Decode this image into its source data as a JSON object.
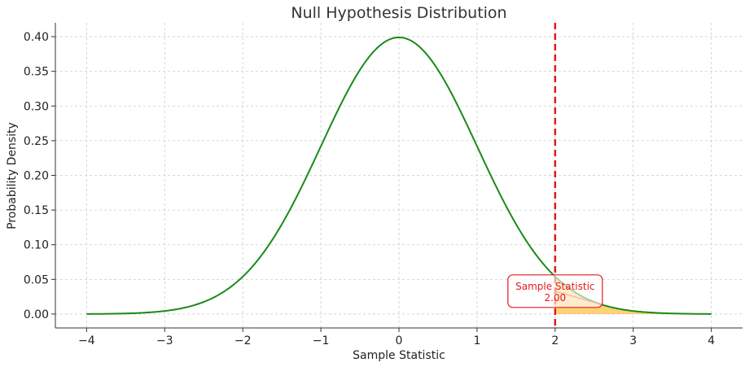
{
  "chart_data": {
    "type": "line",
    "title": "Null Hypothesis Distribution",
    "xlabel": "Sample Statistic",
    "ylabel": "Probability Density",
    "xlim": [
      -4.4,
      4.4
    ],
    "ylim": [
      -0.02,
      0.42
    ],
    "x_ticks": [
      -4,
      -3,
      -2,
      -1,
      0,
      1,
      2,
      3,
      4
    ],
    "x_tick_labels": [
      "−4",
      "−3",
      "−2",
      "−1",
      "0",
      "1",
      "2",
      "3",
      "4"
    ],
    "y_ticks": [
      0.0,
      0.05,
      0.1,
      0.15,
      0.2,
      0.25,
      0.3,
      0.35,
      0.4
    ],
    "y_tick_labels": [
      "0.00",
      "0.05",
      "0.10",
      "0.15",
      "0.20",
      "0.25",
      "0.30",
      "0.35",
      "0.40"
    ],
    "grid": true,
    "series": [
      {
        "color": "#1a8a1a",
        "x": [
          -4.0,
          -3.8,
          -3.6,
          -3.4,
          -3.2,
          -3.0,
          -2.8,
          -2.6,
          -2.4,
          -2.2,
          -2.0,
          -1.8,
          -1.6,
          -1.4,
          -1.2,
          -1.0,
          -0.8,
          -0.6,
          -0.4,
          -0.2,
          0.0,
          0.2,
          0.4,
          0.6,
          0.8,
          1.0,
          1.2,
          1.4,
          1.6,
          1.8,
          2.0,
          2.2,
          2.4,
          2.6,
          2.8,
          3.0,
          3.2,
          3.4,
          3.6,
          3.8,
          4.0
        ],
        "y": [
          0.0001,
          0.0003,
          0.0006,
          0.0012,
          0.0024,
          0.0044,
          0.0079,
          0.0136,
          0.0224,
          0.0355,
          0.054,
          0.079,
          0.1109,
          0.1497,
          0.1942,
          0.242,
          0.2897,
          0.3332,
          0.3683,
          0.391,
          0.3989,
          0.391,
          0.3683,
          0.3332,
          0.2897,
          0.242,
          0.1942,
          0.1497,
          0.1109,
          0.079,
          0.054,
          0.0355,
          0.0224,
          0.0136,
          0.0079,
          0.0044,
          0.0024,
          0.0012,
          0.0006,
          0.0003,
          0.0001
        ]
      }
    ],
    "shaded_region": {
      "from": 2.0,
      "to": 4.0,
      "color": "#ffc04d"
    },
    "vline": {
      "x": 2.0,
      "color": "#e31a1c",
      "style": "dashed"
    },
    "annotation": {
      "line1": "Sample Statistic",
      "line2": "2.00",
      "x": 2.0,
      "y": 0.033,
      "arrow_to_x": 2.6,
      "arrow_to_y": 0.0136,
      "color": "#e31a1c"
    }
  }
}
